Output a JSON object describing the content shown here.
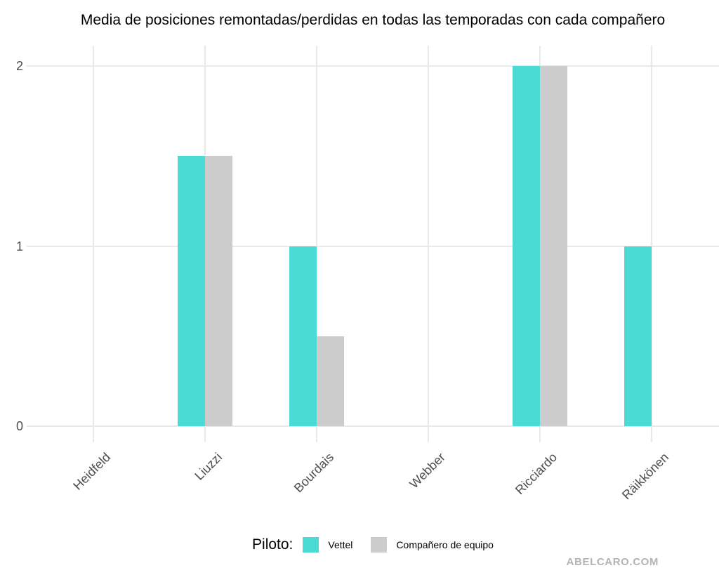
{
  "title": "Media de posiciones remontadas/perdidas en todas las temporadas con cada compañero",
  "watermark": "ABELCARO.COM",
  "legend": {
    "title": "Piloto:",
    "items": [
      {
        "label": "Vettel",
        "color": "#4adbd5"
      },
      {
        "label": "Compañero de equipo",
        "color": "#cccccc"
      }
    ]
  },
  "colors": {
    "vettel": "#4adbd5",
    "teammate": "#cccccc",
    "gridline": "#e9e9e9",
    "tick_text": "#4d4d4d",
    "watermark_text": "#b3b3b3"
  },
  "chart_data": {
    "type": "bar",
    "title": "Media de posiciones remontadas/perdidas en todas las temporadas con cada compañero",
    "categories": [
      "Heidfeld",
      "Liuzzi",
      "Bourdais",
      "Webber",
      "Ricciardo",
      "Räikkönen"
    ],
    "series": [
      {
        "name": "Vettel",
        "color": "#4adbd5",
        "values": [
          0,
          1.5,
          1,
          0,
          2,
          1
        ]
      },
      {
        "name": "Compañero de equipo",
        "color": "#cccccc",
        "values": [
          0,
          1.5,
          0.5,
          0,
          2,
          0
        ]
      }
    ],
    "xlabel": "",
    "ylabel": "",
    "yticks": [
      0,
      1,
      2
    ],
    "ylim": [
      0,
      2.11
    ],
    "grid": true,
    "legend_title": "Piloto:",
    "legend_position": "bottom"
  }
}
